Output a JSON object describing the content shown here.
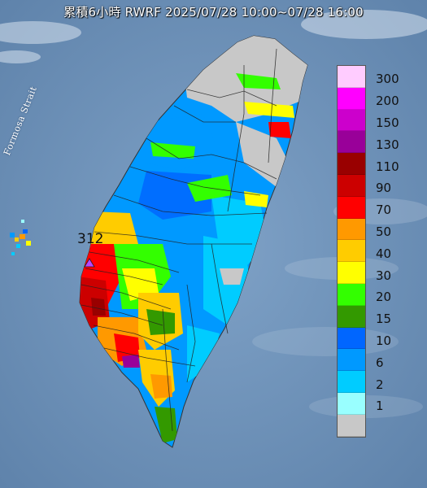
{
  "title": "累積6小時 RWRF 2025/07/28 10:00~07/28 16:00",
  "sea_label": "Formosa Strait",
  "max_label": "312",
  "legend": {
    "items": [
      {
        "label": "300",
        "color": "#ffccff"
      },
      {
        "label": "200",
        "color": "#ff00ff"
      },
      {
        "label": "150",
        "color": "#cc00cc"
      },
      {
        "label": "130",
        "color": "#990099"
      },
      {
        "label": "110",
        "color": "#990000"
      },
      {
        "label": "90",
        "color": "#cc0000"
      },
      {
        "label": "70",
        "color": "#ff0000"
      },
      {
        "label": "50",
        "color": "#ff9900"
      },
      {
        "label": "40",
        "color": "#ffcc00"
      },
      {
        "label": "30",
        "color": "#ffff00"
      },
      {
        "label": "20",
        "color": "#33ff00"
      },
      {
        "label": "15",
        "color": "#339900"
      },
      {
        "label": "10",
        "color": "#0066ff"
      },
      {
        "label": "6",
        "color": "#0099ff"
      },
      {
        "label": "2",
        "color": "#00ccff"
      },
      {
        "label": "1",
        "color": "#99ffff"
      },
      {
        "label": "",
        "color": "#c8c8c8"
      }
    ]
  }
}
